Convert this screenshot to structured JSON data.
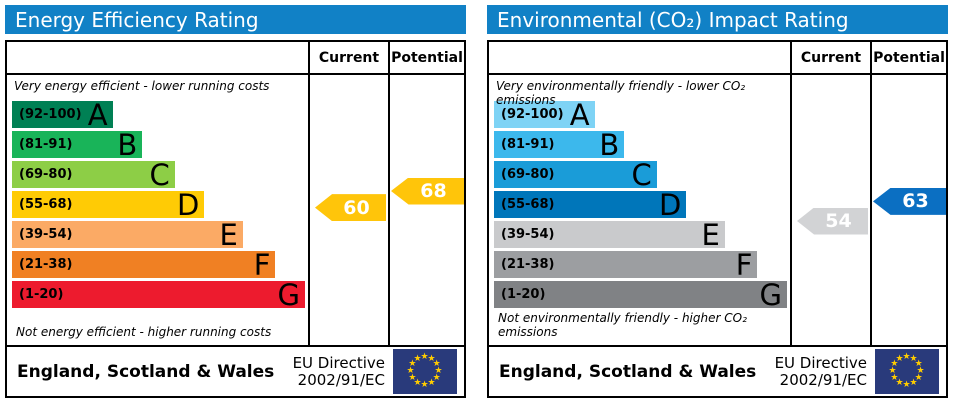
{
  "panels": [
    {
      "title": "Energy Efficiency Rating",
      "header_bg": "#1181c6",
      "columns": {
        "current": "Current",
        "potential": "Potential"
      },
      "top_note": "Very energy efficient - lower running costs",
      "bottom_note": "Not energy efficient - higher running costs",
      "bands": [
        {
          "grade": "A",
          "range_label": "(92-100)",
          "lo": 92,
          "hi": 100,
          "color": "#008054",
          "width_pct": 34
        },
        {
          "grade": "B",
          "range_label": "(81-91)",
          "lo": 81,
          "hi": 91,
          "color": "#19b459",
          "width_pct": 44
        },
        {
          "grade": "C",
          "range_label": "(69-80)",
          "lo": 69,
          "hi": 80,
          "color": "#8dce46",
          "width_pct": 55
        },
        {
          "grade": "D",
          "range_label": "(55-68)",
          "lo": 55,
          "hi": 68,
          "color": "#ffcb05",
          "width_pct": 65
        },
        {
          "grade": "E",
          "range_label": "(39-54)",
          "lo": 39,
          "hi": 54,
          "color": "#fbaa65",
          "width_pct": 78
        },
        {
          "grade": "F",
          "range_label": "(21-38)",
          "lo": 21,
          "hi": 38,
          "color": "#f08023",
          "width_pct": 89
        },
        {
          "grade": "G",
          "range_label": "(1-20)",
          "lo": 1,
          "hi": 20,
          "color": "#ed1b2e",
          "width_pct": 99
        }
      ],
      "current": {
        "value": 60,
        "color": "#ffc50a"
      },
      "potential": {
        "value": 68,
        "color": "#ffc50a"
      },
      "footer": {
        "region": "England, Scotland & Wales",
        "directive_line1": "EU Directive",
        "directive_line2": "2002/91/EC",
        "flag_bg": "#293a7b",
        "star_color": "#ffcc00"
      }
    },
    {
      "title": "Environmental (CO₂) Impact Rating",
      "header_bg": "#1181c6",
      "columns": {
        "current": "Current",
        "potential": "Potential"
      },
      "top_note": "Very environmentally friendly - lower CO₂ emissions",
      "bottom_note": "Not environmentally friendly - higher CO₂ emissions",
      "bands": [
        {
          "grade": "A",
          "range_label": "(92-100)",
          "lo": 92,
          "hi": 100,
          "color": "#7ed3f5",
          "width_pct": 34
        },
        {
          "grade": "B",
          "range_label": "(81-91)",
          "lo": 81,
          "hi": 91,
          "color": "#3cb8ec",
          "width_pct": 44
        },
        {
          "grade": "C",
          "range_label": "(69-80)",
          "lo": 69,
          "hi": 80,
          "color": "#1a9cd8",
          "width_pct": 55
        },
        {
          "grade": "D",
          "range_label": "(55-68)",
          "lo": 55,
          "hi": 68,
          "color": "#0076ba",
          "width_pct": 65
        },
        {
          "grade": "E",
          "range_label": "(39-54)",
          "lo": 39,
          "hi": 54,
          "color": "#c9cacc",
          "width_pct": 78
        },
        {
          "grade": "F",
          "range_label": "(21-38)",
          "lo": 21,
          "hi": 38,
          "color": "#9c9ea1",
          "width_pct": 89
        },
        {
          "grade": "G",
          "range_label": "(1-20)",
          "lo": 1,
          "hi": 20,
          "color": "#808285",
          "width_pct": 99
        }
      ],
      "current": {
        "value": 54,
        "color": "#d2d3d5"
      },
      "potential": {
        "value": 63,
        "color": "#0b6fc2"
      },
      "footer": {
        "region": "England, Scotland & Wales",
        "directive_line1": "EU Directive",
        "directive_line2": "2002/91/EC",
        "flag_bg": "#293a7b",
        "star_color": "#ffcc00"
      }
    }
  ],
  "chart_data": [
    {
      "type": "bar",
      "title": "Energy Efficiency Rating",
      "categories": [
        "A (92-100)",
        "B (81-91)",
        "C (69-80)",
        "D (55-68)",
        "E (39-54)",
        "F (21-38)",
        "G (1-20)"
      ],
      "values": [
        34,
        44,
        55,
        65,
        78,
        89,
        99
      ],
      "series": [
        {
          "name": "Current",
          "values": [
            60
          ]
        },
        {
          "name": "Potential",
          "values": [
            68
          ]
        }
      ],
      "annotations": [
        "Very energy efficient - lower running costs",
        "Not energy efficient - higher running costs",
        "England, Scotland & Wales",
        "EU Directive 2002/91/EC"
      ],
      "xlabel": "",
      "ylabel": "",
      "legend_position": "top-right-columns"
    },
    {
      "type": "bar",
      "title": "Environmental (CO₂) Impact Rating",
      "categories": [
        "A (92-100)",
        "B (81-91)",
        "C (69-80)",
        "D (55-68)",
        "E (39-54)",
        "F (21-38)",
        "G (1-20)"
      ],
      "values": [
        34,
        44,
        55,
        65,
        78,
        89,
        99
      ],
      "series": [
        {
          "name": "Current",
          "values": [
            54
          ]
        },
        {
          "name": "Potential",
          "values": [
            63
          ]
        }
      ],
      "annotations": [
        "Very environmentally friendly - lower CO₂ emissions",
        "Not environmentally friendly - higher CO₂ emissions",
        "England, Scotland & Wales",
        "EU Directive 2002/91/EC"
      ],
      "xlabel": "",
      "ylabel": "",
      "legend_position": "top-right-columns"
    }
  ]
}
